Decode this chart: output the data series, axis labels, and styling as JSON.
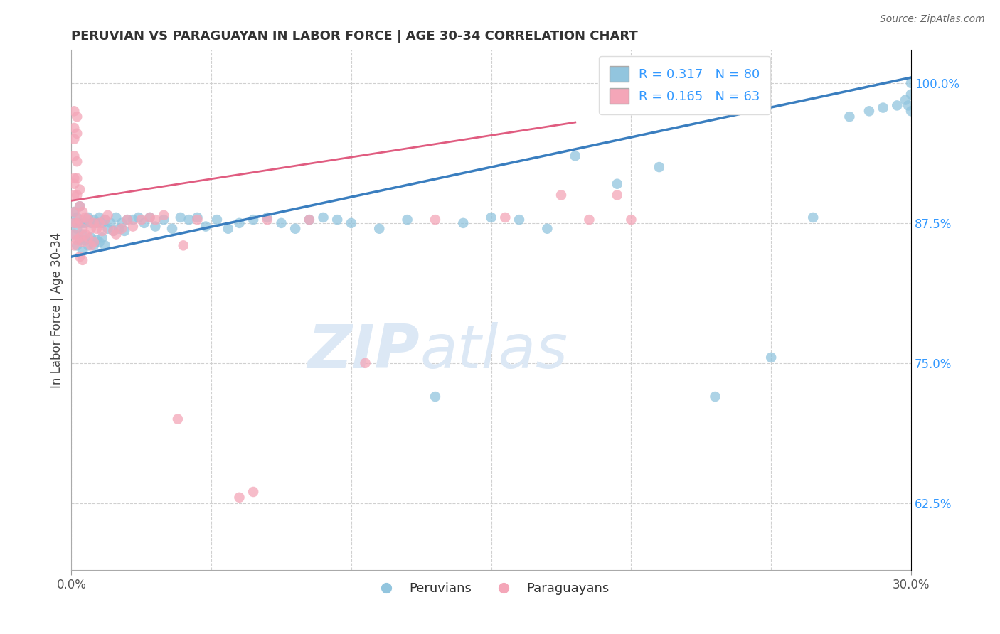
{
  "title": "PERUVIAN VS PARAGUAYAN IN LABOR FORCE | AGE 30-34 CORRELATION CHART",
  "source": "Source: ZipAtlas.com",
  "ylabel": "In Labor Force | Age 30-34",
  "xlim": [
    0.0,
    0.3
  ],
  "ylim": [
    0.565,
    1.03
  ],
  "yticks_right": [
    0.625,
    0.75,
    0.875,
    1.0
  ],
  "ytick_right_labels": [
    "62.5%",
    "75.0%",
    "87.5%",
    "100.0%"
  ],
  "legend_R_blue": "R = 0.317",
  "legend_N_blue": "N = 80",
  "legend_R_pink": "R = 0.165",
  "legend_N_pink": "N = 63",
  "legend_label_blue": "Peruvians",
  "legend_label_pink": "Paraguayans",
  "blue_color": "#92c5de",
  "pink_color": "#f4a6b8",
  "blue_line_color": "#3a7ebf",
  "pink_line_color": "#e05c80",
  "title_color": "#333333",
  "axis_label_color": "#444444",
  "right_tick_color": "#3399ff",
  "watermark_color": "#dce8f5",
  "background_color": "#ffffff",
  "grid_color": "#d0d0d0",
  "blue_trend_x0": 0.0,
  "blue_trend_y0": 0.845,
  "blue_trend_x1": 0.3,
  "blue_trend_y1": 1.005,
  "pink_trend_x0": 0.0,
  "pink_trend_y0": 0.895,
  "pink_trend_x1": 0.18,
  "pink_trend_y1": 0.965,
  "peruvian_x": [
    0.001,
    0.001,
    0.001,
    0.002,
    0.002,
    0.002,
    0.003,
    0.003,
    0.003,
    0.004,
    0.004,
    0.004,
    0.005,
    0.005,
    0.006,
    0.006,
    0.007,
    0.007,
    0.008,
    0.008,
    0.009,
    0.009,
    0.01,
    0.01,
    0.011,
    0.011,
    0.012,
    0.012,
    0.013,
    0.014,
    0.015,
    0.016,
    0.017,
    0.018,
    0.019,
    0.02,
    0.022,
    0.024,
    0.026,
    0.028,
    0.03,
    0.033,
    0.036,
    0.039,
    0.042,
    0.045,
    0.048,
    0.052,
    0.056,
    0.06,
    0.065,
    0.07,
    0.075,
    0.08,
    0.085,
    0.09,
    0.095,
    0.1,
    0.11,
    0.12,
    0.13,
    0.14,
    0.15,
    0.16,
    0.17,
    0.18,
    0.195,
    0.21,
    0.23,
    0.25,
    0.265,
    0.278,
    0.285,
    0.29,
    0.295,
    0.298,
    0.299,
    0.3,
    0.3,
    0.3
  ],
  "peruvian_y": [
    0.875,
    0.865,
    0.885,
    0.87,
    0.88,
    0.855,
    0.875,
    0.86,
    0.89,
    0.875,
    0.865,
    0.85,
    0.875,
    0.86,
    0.88,
    0.855,
    0.875,
    0.862,
    0.878,
    0.855,
    0.875,
    0.86,
    0.88,
    0.858,
    0.875,
    0.862,
    0.878,
    0.855,
    0.87,
    0.875,
    0.868,
    0.88,
    0.87,
    0.875,
    0.868,
    0.878,
    0.878,
    0.88,
    0.875,
    0.88,
    0.872,
    0.878,
    0.87,
    0.88,
    0.878,
    0.88,
    0.872,
    0.878,
    0.87,
    0.875,
    0.878,
    0.88,
    0.875,
    0.87,
    0.878,
    0.88,
    0.878,
    0.875,
    0.87,
    0.878,
    0.72,
    0.875,
    0.88,
    0.878,
    0.87,
    0.935,
    0.91,
    0.925,
    0.72,
    0.755,
    0.88,
    0.97,
    0.975,
    0.978,
    0.98,
    0.985,
    0.98,
    0.975,
    0.99,
    1.0
  ],
  "paraguayan_x": [
    0.001,
    0.001,
    0.001,
    0.001,
    0.001,
    0.001,
    0.001,
    0.001,
    0.001,
    0.001,
    0.001,
    0.002,
    0.002,
    0.002,
    0.002,
    0.002,
    0.002,
    0.002,
    0.003,
    0.003,
    0.003,
    0.003,
    0.003,
    0.004,
    0.004,
    0.004,
    0.004,
    0.005,
    0.005,
    0.006,
    0.006,
    0.007,
    0.007,
    0.008,
    0.008,
    0.009,
    0.01,
    0.011,
    0.012,
    0.013,
    0.015,
    0.016,
    0.018,
    0.02,
    0.022,
    0.025,
    0.028,
    0.03,
    0.033,
    0.038,
    0.04,
    0.045,
    0.06,
    0.065,
    0.07,
    0.085,
    0.105,
    0.13,
    0.155,
    0.175,
    0.185,
    0.195,
    0.2
  ],
  "paraguayan_y": [
    0.975,
    0.96,
    0.95,
    0.935,
    0.915,
    0.91,
    0.9,
    0.885,
    0.875,
    0.865,
    0.855,
    0.97,
    0.955,
    0.93,
    0.915,
    0.9,
    0.875,
    0.86,
    0.905,
    0.89,
    0.878,
    0.862,
    0.845,
    0.885,
    0.87,
    0.858,
    0.842,
    0.88,
    0.865,
    0.878,
    0.862,
    0.87,
    0.855,
    0.875,
    0.858,
    0.87,
    0.875,
    0.868,
    0.878,
    0.882,
    0.868,
    0.865,
    0.87,
    0.878,
    0.872,
    0.878,
    0.88,
    0.878,
    0.882,
    0.7,
    0.855,
    0.878,
    0.63,
    0.635,
    0.878,
    0.878,
    0.75,
    0.878,
    0.88,
    0.9,
    0.878,
    0.9,
    0.878
  ]
}
